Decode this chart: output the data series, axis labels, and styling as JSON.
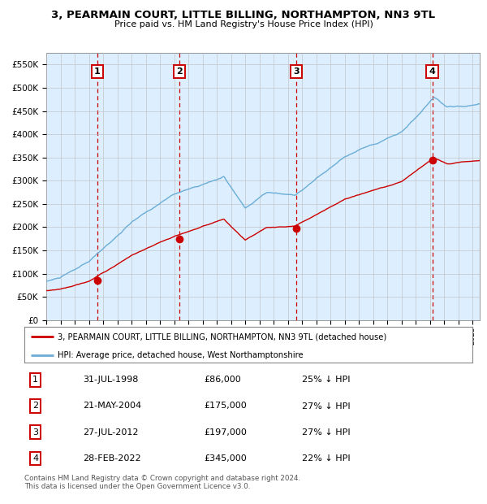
{
  "title": "3, PEARMAIN COURT, LITTLE BILLING, NORTHAMPTON, NN3 9TL",
  "subtitle": "Price paid vs. HM Land Registry's House Price Index (HPI)",
  "hpi_label": "HPI: Average price, detached house, West Northamptonshire",
  "property_label": "3, PEARMAIN COURT, LITTLE BILLING, NORTHAMPTON, NN3 9TL (detached house)",
  "transactions": [
    {
      "num": 1,
      "date": "31-JUL-1998",
      "year": 1998.58,
      "price": 86000,
      "pct": "25% ↓ HPI"
    },
    {
      "num": 2,
      "date": "21-MAY-2004",
      "year": 2004.38,
      "price": 175000,
      "pct": "27% ↓ HPI"
    },
    {
      "num": 3,
      "date": "27-JUL-2012",
      "year": 2012.58,
      "price": 197000,
      "pct": "27% ↓ HPI"
    },
    {
      "num": 4,
      "date": "28-FEB-2022",
      "year": 2022.16,
      "price": 345000,
      "pct": "22% ↓ HPI"
    }
  ],
  "hpi_color": "#6baed6",
  "property_color": "#cc0000",
  "background_color": "#ddeeff",
  "grid_color": "#bbbbbb",
  "vline_color": "#cc0000",
  "ylim": [
    0,
    575000
  ],
  "xlim_start": 1995.0,
  "xlim_end": 2025.5,
  "footer": "Contains HM Land Registry data © Crown copyright and database right 2024.\nThis data is licensed under the Open Government Licence v3.0."
}
